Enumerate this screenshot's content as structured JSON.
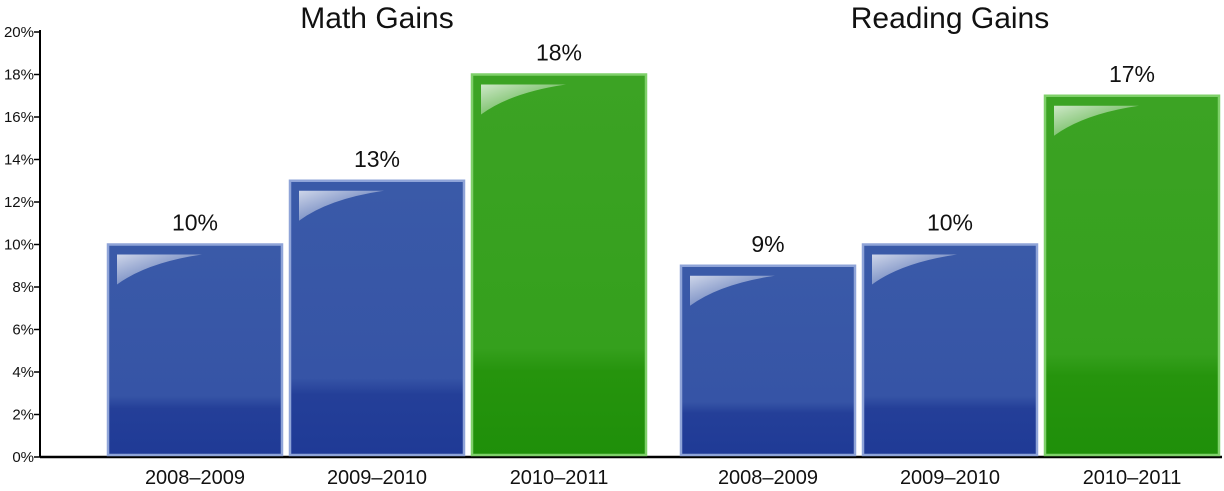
{
  "chart_data": {
    "type": "bar",
    "ylim": [
      0,
      20
    ],
    "yticks": [
      "0%",
      "2%",
      "4%",
      "6%",
      "8%",
      "10%",
      "12%",
      "14%",
      "16%",
      "18%",
      "20%"
    ],
    "grid": false,
    "legend": "none",
    "panels": [
      {
        "title": "Math Gains",
        "categories": [
          "2008–2009",
          "2009–2010",
          "2010–2011"
        ],
        "values": [
          10,
          13,
          18
        ],
        "labels": [
          "10%",
          "13%",
          "18%"
        ],
        "colors": [
          "blue",
          "blue",
          "green"
        ]
      },
      {
        "title": "Reading Gains",
        "categories": [
          "2008–2009",
          "2009–2010",
          "2010–2011"
        ],
        "values": [
          9,
          10,
          17
        ],
        "labels": [
          "9%",
          "10%",
          "17%"
        ],
        "colors": [
          "blue",
          "blue",
          "green"
        ]
      }
    ]
  },
  "colors": {
    "blue": "#2f4fa3",
    "blue_dark": "#1f3a96",
    "blue_light": "#3a5aa8",
    "green": "#2e9a15",
    "green_dark": "#1f8f0a",
    "green_light": "#3ca324",
    "axis": "#000000"
  }
}
